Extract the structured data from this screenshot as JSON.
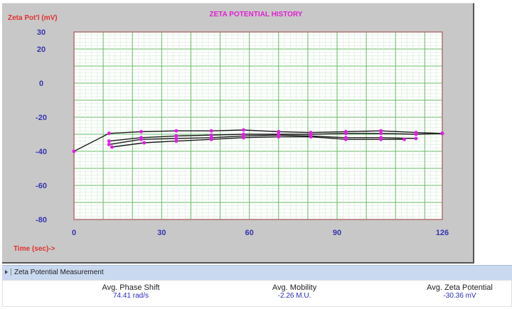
{
  "chart_data": {
    "type": "line",
    "title": "ZETA POTENTIAL HISTORY",
    "ylabel": "Zeta Pot'l (mV)",
    "xlabel": "Time (sec)->",
    "xlim": [
      0,
      126
    ],
    "ylim": [
      -80,
      30
    ],
    "xticks": [
      0,
      30,
      60,
      90,
      126
    ],
    "yticks": [
      30,
      20,
      0,
      -20,
      -40,
      -60,
      -80
    ],
    "grid": true,
    "colors": {
      "line": "#1a1a1a",
      "marker": "#e020e0",
      "grid_major": "#66bb66",
      "grid_minor": "#cfe8cf",
      "frame": "#b07070",
      "title": "#e020d0",
      "axis_label": "#e03030",
      "ticks": "#3535b0"
    },
    "series": [
      {
        "x": [
          0,
          12,
          23,
          35,
          47,
          58,
          70,
          81,
          93,
          105,
          117,
          126
        ],
        "y": [
          -40,
          -29.5,
          -28.5,
          -28,
          -28,
          -27.5,
          -28.5,
          -29,
          -28.5,
          -28,
          -29,
          -29.5
        ]
      },
      {
        "x": [
          12,
          23,
          35,
          47,
          58,
          70,
          81,
          93,
          105,
          117,
          126
        ],
        "y": [
          -34,
          -32,
          -31,
          -30.5,
          -30,
          -30,
          -30,
          -29.5,
          -29.5,
          -30,
          -29.5
        ]
      },
      {
        "x": [
          12,
          23,
          35,
          47,
          58,
          70,
          81,
          93,
          105,
          117
        ],
        "y": [
          -36,
          -33,
          -32.5,
          -32,
          -31,
          -30.5,
          -31,
          -32,
          -32,
          -32.5
        ]
      },
      {
        "x": [
          13,
          24,
          35,
          47,
          58,
          70,
          81,
          93,
          105,
          113
        ],
        "y": [
          -37.5,
          -35,
          -34,
          -33,
          -32,
          -31.5,
          -31.5,
          -33,
          -33,
          -33
        ]
      }
    ]
  },
  "section": {
    "title": "Zeta Potential Measurement"
  },
  "metrics": [
    {
      "label": "Avg. Phase Shift",
      "value": "74.41 rad/s"
    },
    {
      "label": "Avg. Mobility",
      "value": "-2.26 M.U."
    },
    {
      "label": "Avg. Zeta Potential",
      "value": "-30.36 mV"
    }
  ]
}
